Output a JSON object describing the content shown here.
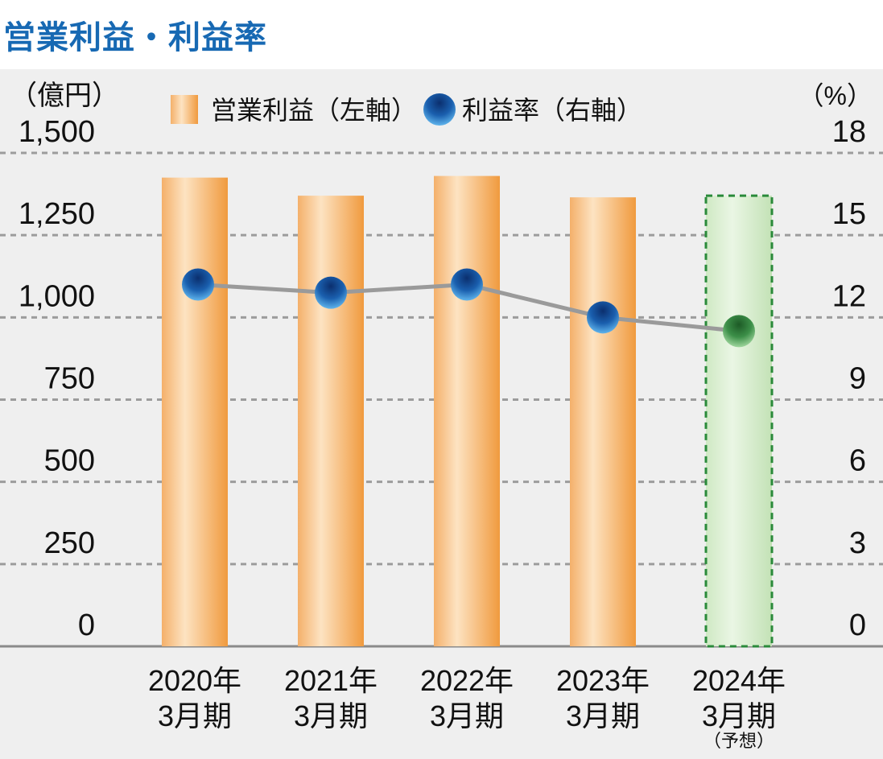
{
  "title": "営業利益・利益率",
  "colors": {
    "title": "#1769b3",
    "plot_background": "#efefef",
    "bar_orange": "#f2a24d",
    "bar_light": "#fde3c2",
    "forecast_green": "#d7eece",
    "forecast_border": "#2a8a3a",
    "marker_blue": "#0d4b94",
    "marker_green": "#2f8a3e",
    "line": "#9a9a9a",
    "grid": "#9c9c9c"
  },
  "chart_data": {
    "type": "bar",
    "title": "営業利益・利益率",
    "y_left_unit": "（億円）",
    "y_right_unit": "（%）",
    "y_left_ticks": [
      "0",
      "250",
      "500",
      "750",
      "1,000",
      "1,250",
      "1,500"
    ],
    "y_right_ticks": [
      "0",
      "3",
      "6",
      "9",
      "12",
      "15",
      "18"
    ],
    "y_left_range": [
      0,
      1500
    ],
    "y_right_range": [
      0,
      18
    ],
    "grid": true,
    "legend_position": "top",
    "categories": [
      {
        "line1": "2020年",
        "line2": "3月期",
        "note": ""
      },
      {
        "line1": "2021年",
        "line2": "3月期",
        "note": ""
      },
      {
        "line1": "2022年",
        "line2": "3月期",
        "note": ""
      },
      {
        "line1": "2023年",
        "line2": "3月期",
        "note": ""
      },
      {
        "line1": "2024年",
        "line2": "3月期",
        "note": "（予想）"
      }
    ],
    "series": [
      {
        "name": "営業利益（左軸）",
        "type": "bar",
        "axis": "left",
        "values": [
          1425,
          1370,
          1430,
          1365,
          1370
        ],
        "forecast_index": 4
      },
      {
        "name": "利益率（右軸）",
        "type": "line",
        "axis": "right",
        "values": [
          13.2,
          12.9,
          13.2,
          12.0,
          11.5
        ],
        "forecast_index": 4
      }
    ]
  }
}
